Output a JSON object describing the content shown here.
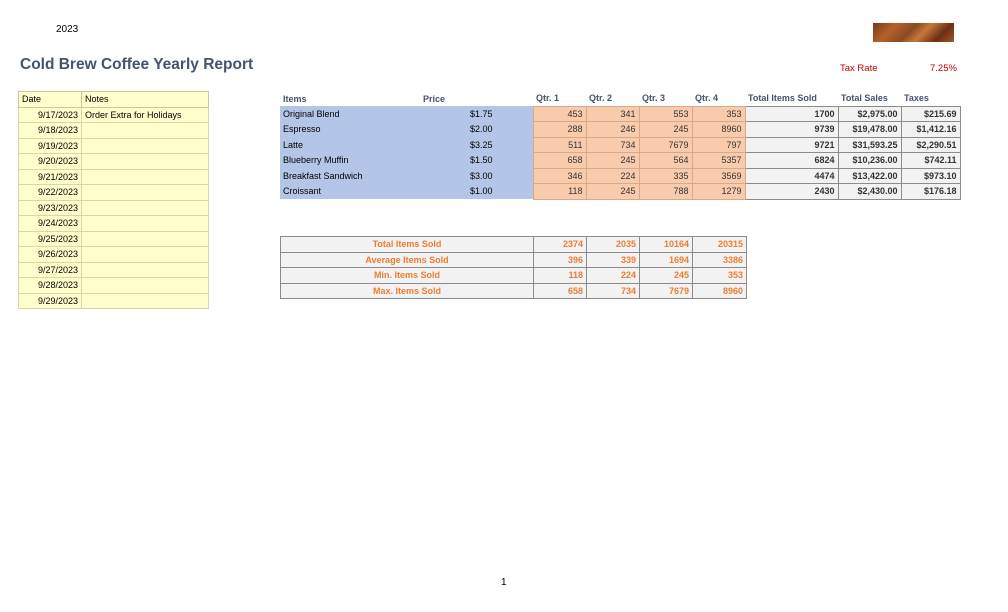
{
  "header": {
    "year": "2023",
    "title": "Cold Brew Coffee Yearly Report",
    "tax_label": "Tax Rate",
    "tax_value": "7.25%"
  },
  "log": {
    "headers": [
      "Date",
      "Notes"
    ],
    "rows": [
      {
        "date": "9/17/2023",
        "note": "Order Extra for Holidays"
      },
      {
        "date": "9/18/2023",
        "note": ""
      },
      {
        "date": "9/19/2023",
        "note": ""
      },
      {
        "date": "9/20/2023",
        "note": ""
      },
      {
        "date": "9/21/2023",
        "note": ""
      },
      {
        "date": "9/22/2023",
        "note": ""
      },
      {
        "date": "9/23/2023",
        "note": ""
      },
      {
        "date": "9/24/2023",
        "note": ""
      },
      {
        "date": "9/25/2023",
        "note": ""
      },
      {
        "date": "9/26/2023",
        "note": ""
      },
      {
        "date": "9/27/2023",
        "note": ""
      },
      {
        "date": "9/28/2023",
        "note": ""
      },
      {
        "date": "9/29/2023",
        "note": ""
      }
    ]
  },
  "items": {
    "headers": [
      "Items",
      "Price",
      "Qtr. 1",
      "Qtr. 2",
      "Qtr. 3",
      "Qtr. 4",
      "Total Items Sold",
      "Total Sales",
      "Taxes"
    ],
    "rows": [
      {
        "name": "Original Blend",
        "price": "$1.75",
        "q1": "453",
        "q2": "341",
        "q3": "553",
        "q4": "353",
        "total": "1700",
        "sales": "$2,975.00",
        "taxes": "$215.69"
      },
      {
        "name": "Espresso",
        "price": "$2.00",
        "q1": "288",
        "q2": "246",
        "q3": "245",
        "q4": "8960",
        "total": "9739",
        "sales": "$19,478.00",
        "taxes": "$1,412.16"
      },
      {
        "name": "Latte",
        "price": "$3.25",
        "q1": "511",
        "q2": "734",
        "q3": "7679",
        "q4": "797",
        "total": "9721",
        "sales": "$31,593.25",
        "taxes": "$2,290.51"
      },
      {
        "name": "Blueberry Muffin",
        "price": "$1.50",
        "q1": "658",
        "q2": "245",
        "q3": "564",
        "q4": "5357",
        "total": "6824",
        "sales": "$10,236.00",
        "taxes": "$742.11"
      },
      {
        "name": "Breakfast Sandwich",
        "price": "$3.00",
        "q1": "346",
        "q2": "224",
        "q3": "335",
        "q4": "3569",
        "total": "4474",
        "sales": "$13,422.00",
        "taxes": "$973.10"
      },
      {
        "name": "Croissant",
        "price": "$1.00",
        "q1": "118",
        "q2": "245",
        "q3": "788",
        "q4": "1279",
        "total": "2430",
        "sales": "$2,430.00",
        "taxes": "$176.18"
      }
    ]
  },
  "summary": [
    {
      "label": "Total Items Sold",
      "q1": "2374",
      "q2": "2035",
      "q3": "10164",
      "q4": "20315"
    },
    {
      "label": "Average Items Sold",
      "q1": "396",
      "q2": "339",
      "q3": "1694",
      "q4": "3386"
    },
    {
      "label": "Min. Items Sold",
      "q1": "118",
      "q2": "224",
      "q3": "245",
      "q4": "353"
    },
    {
      "label": "Max. Items Sold",
      "q1": "658",
      "q2": "734",
      "q3": "7679",
      "q4": "8960"
    }
  ],
  "footer": {
    "page_number": "1"
  }
}
